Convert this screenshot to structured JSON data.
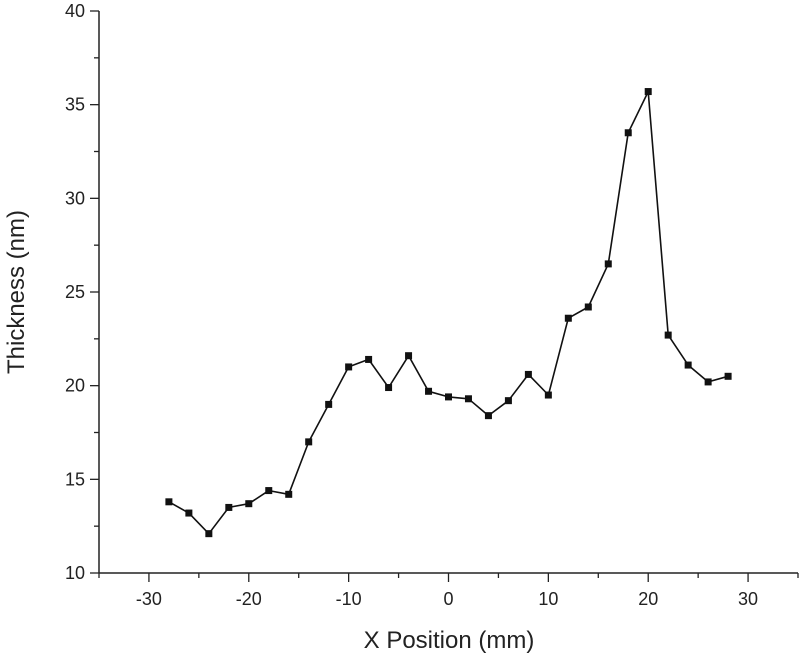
{
  "chart_data": {
    "type": "line",
    "title": "",
    "xlabel": "X Position (mm)",
    "ylabel": "Thickness (nm)",
    "xlim": [
      -35,
      35
    ],
    "ylim": [
      10,
      40
    ],
    "x_ticks": [
      -30,
      -20,
      -10,
      0,
      10,
      20,
      30
    ],
    "x_tick_labels": [
      "-30",
      "-20",
      "-10",
      "0",
      "10",
      "20",
      "30"
    ],
    "y_ticks": [
      10,
      15,
      20,
      25,
      30,
      35,
      40
    ],
    "y_tick_labels": [
      "10",
      "15",
      "20",
      "25",
      "30",
      "35",
      "40"
    ],
    "grid": false,
    "legend": "none",
    "series": [
      {
        "marker": "square",
        "color": "#111111",
        "x": [
          -28,
          -26,
          -24,
          -22,
          -20,
          -18,
          -16,
          -14,
          -12,
          -10,
          -8,
          -6,
          -4,
          -2,
          0,
          2,
          4,
          6,
          8,
          10,
          12,
          14,
          16,
          18,
          20,
          22,
          24,
          26,
          28
        ],
        "y": [
          13.8,
          13.2,
          12.1,
          13.5,
          13.7,
          14.4,
          14.2,
          17.0,
          19.0,
          21.0,
          21.4,
          19.9,
          21.6,
          19.7,
          19.4,
          19.3,
          18.4,
          19.2,
          20.6,
          19.5,
          23.6,
          24.2,
          26.5,
          33.5,
          35.7,
          22.7,
          21.1,
          20.2,
          20.5
        ]
      }
    ]
  }
}
